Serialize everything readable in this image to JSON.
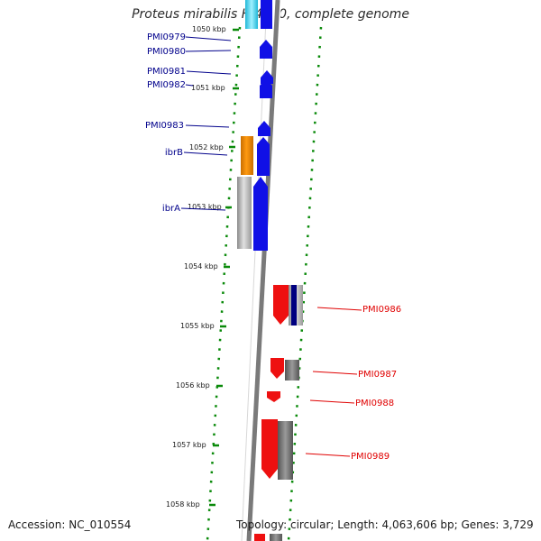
{
  "header": {
    "title": "Proteus mirabilis HI4320, complete genome"
  },
  "footer": {
    "accession": "Accession: NC_010554",
    "stats": "Topology: circular; Length: 4,063,606 bp; Genes: 3,729"
  },
  "ticks": [
    "1050 kbp",
    "1051 kbp",
    "1052 kbp",
    "1053 kbp",
    "1054 kbp",
    "1055 kbp",
    "1056 kbp",
    "1057 kbp",
    "1058 kbp"
  ],
  "gene_labels": {
    "left": [
      "PMI0979",
      "PMI0980",
      "PMI0981",
      "PMI0982",
      "PMI0983",
      "ibrB",
      "ibrA"
    ],
    "right": [
      "PMI0986",
      "PMI0987",
      "PMI0988",
      "PMI0989"
    ]
  },
  "colors": {
    "forward_gene": "#1010e6",
    "reverse_gene": "#ee1010",
    "left_label": "#00008b",
    "right_label": "#e00000",
    "orange_block": "#f08a00",
    "gray_block": "#9a9a9a",
    "cyan_block": "#20c8e8",
    "dark_navy_block": "#000080",
    "tick_color": "#0a8a0a"
  }
}
